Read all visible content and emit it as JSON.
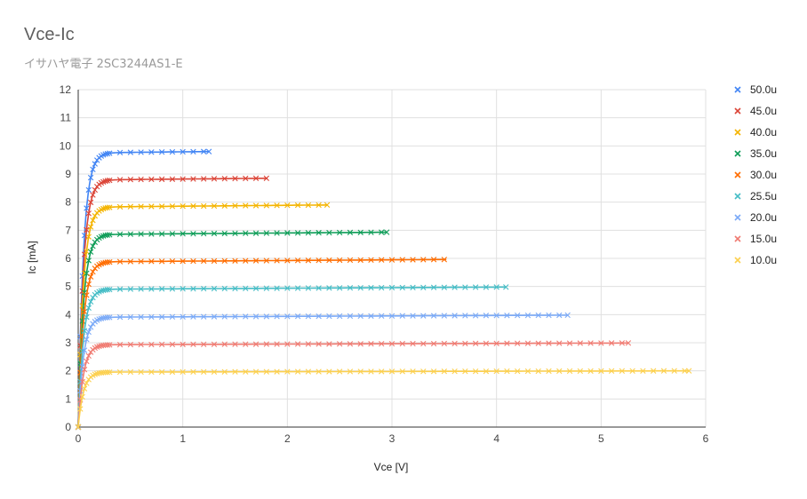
{
  "chart_data": {
    "type": "scatter",
    "title": "Vce-Ic",
    "subtitle": "イサハヤ電子 2SC3244AS1-E",
    "xlabel": "Vce [V]",
    "ylabel": "Ic [mA]",
    "xlim": [
      0,
      6
    ],
    "ylim": [
      0,
      12
    ],
    "x_ticks": [
      "0",
      "1",
      "2",
      "3",
      "4",
      "5",
      "6"
    ],
    "y_ticks": [
      "0",
      "1",
      "2",
      "3",
      "4",
      "5",
      "6",
      "7",
      "8",
      "9",
      "10",
      "11",
      "12"
    ],
    "grid": true,
    "legend_position": "right",
    "marker": "x",
    "series": [
      {
        "name": "50.0u",
        "color": "#4285f4",
        "vmax": 1.25,
        "ic": 9.8
      },
      {
        "name": "45.0u",
        "color": "#db4437",
        "vmax": 1.81,
        "ic": 8.85
      },
      {
        "name": "40.0u",
        "color": "#f4b400",
        "vmax": 2.38,
        "ic": 7.9
      },
      {
        "name": "35.0u",
        "color": "#0f9d58",
        "vmax": 2.95,
        "ic": 6.93
      },
      {
        "name": "30.0u",
        "color": "#ff6d01",
        "vmax": 3.52,
        "ic": 5.96
      },
      {
        "name": "25.5u",
        "color": "#46bdc6",
        "vmax": 4.09,
        "ic": 4.98
      },
      {
        "name": "20.0u",
        "color": "#7baaf7",
        "vmax": 4.68,
        "ic": 3.98
      },
      {
        "name": "15.0u",
        "color": "#f07b72",
        "vmax": 5.26,
        "ic": 2.99
      },
      {
        "name": "10.0u",
        "color": "#fcd04f",
        "vmax": 5.84,
        "ic": 2.0
      }
    ]
  }
}
